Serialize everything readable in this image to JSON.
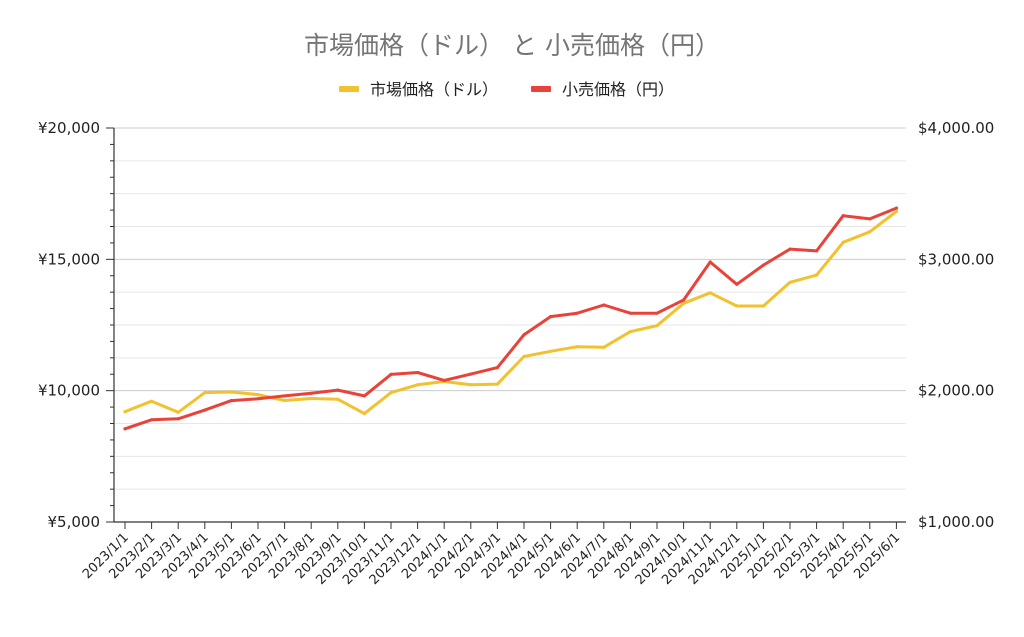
{
  "chart_data": {
    "type": "line",
    "title": "市場価格（ドル） と 小売価格（円）",
    "legend_position": "top",
    "grid": true,
    "x": [
      "2023/1/1",
      "2023/2/1",
      "2023/3/1",
      "2023/4/1",
      "2023/5/1",
      "2023/6/1",
      "2023/7/1",
      "2023/8/1",
      "2023/9/1",
      "2023/10/1",
      "2023/11/1",
      "2023/12/1",
      "2024/1/1",
      "2024/2/1",
      "2024/3/1",
      "2024/4/1",
      "2024/5/1",
      "2024/6/1",
      "2024/7/1",
      "2024/8/1",
      "2024/9/1",
      "2024/10/1",
      "2024/11/1",
      "2024/12/1",
      "2025/1/1",
      "2025/2/1",
      "2025/3/1",
      "2025/4/1",
      "2025/5/1",
      "2025/6/1"
    ],
    "left_axis": {
      "ylim": [
        5000,
        20000
      ],
      "ticks": [
        "¥5,000",
        "¥10,000",
        "¥15,000",
        "¥20,000"
      ],
      "tick_values": [
        5000,
        10000,
        15000,
        20000
      ]
    },
    "right_axis": {
      "ylim": [
        1000,
        4000
      ],
      "ticks": [
        "$1,000.00",
        "$2,000.00",
        "$3,000.00",
        "$4,000.00"
      ],
      "tick_values": [
        1000,
        2000,
        3000,
        4000
      ]
    },
    "series": [
      {
        "name": "市場価格（ドル）",
        "axis": "right",
        "color": "#f2c12e",
        "values": [
          1840,
          1920,
          1835,
          1985,
          1990,
          1970,
          1925,
          1940,
          1935,
          1825,
          1985,
          2045,
          2070,
          2045,
          2050,
          2260,
          2300,
          2335,
          2330,
          2450,
          2495,
          2665,
          2745,
          2645,
          2645,
          2825,
          2880,
          3130,
          3210,
          3365
        ]
      },
      {
        "name": "小売価格（円）",
        "axis": "left",
        "color": "#e8433a",
        "values": [
          8550,
          8890,
          8930,
          9260,
          9620,
          9690,
          9800,
          9900,
          10020,
          9800,
          10620,
          10690,
          10390,
          10630,
          10880,
          12130,
          12820,
          12950,
          13260,
          12950,
          12950,
          13450,
          14900,
          14050,
          14780,
          15390,
          15320,
          16660,
          16540,
          16950
        ]
      }
    ]
  }
}
